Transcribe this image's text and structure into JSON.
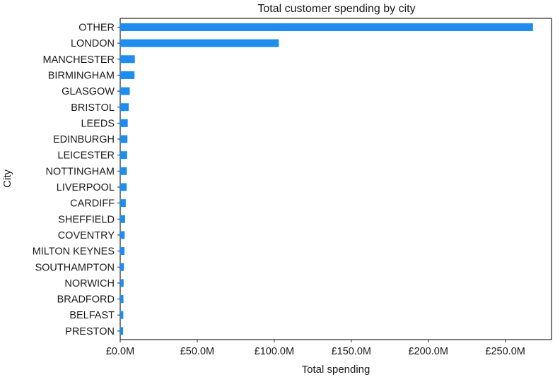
{
  "chart_data": {
    "type": "bar",
    "orientation": "horizontal",
    "title": "Total customer spending by city",
    "xlabel": "Total spending",
    "ylabel": "City",
    "categories": [
      "OTHER",
      "LONDON",
      "MANCHESTER",
      "BIRMINGHAM",
      "GLASGOW",
      "BRISTOL",
      "LEEDS",
      "EDINBURGH",
      "LEICESTER",
      "NOTTINGHAM",
      "LIVERPOOL",
      "CARDIFF",
      "SHEFFIELD",
      "COVENTRY",
      "MILTON KEYNES",
      "SOUTHAMPTON",
      "NORWICH",
      "BRADFORD",
      "BELFAST",
      "PRESTON"
    ],
    "values": [
      268.0,
      103.0,
      9.5,
      9.3,
      6.2,
      5.5,
      4.9,
      4.7,
      4.5,
      4.3,
      4.2,
      3.6,
      3.2,
      2.9,
      2.8,
      2.4,
      2.2,
      2.1,
      2.0,
      1.9
    ],
    "value_unit": "£M",
    "xlim": [
      0,
      280
    ],
    "xticks": [
      0,
      50,
      100,
      150,
      200,
      250
    ],
    "xtick_labels": [
      "£0.0M",
      "£50.0M",
      "£100.0M",
      "£150.0M",
      "£200.0M",
      "£250.0M"
    ],
    "bar_color": "#1f8ded",
    "grid": false,
    "legend": "none"
  }
}
